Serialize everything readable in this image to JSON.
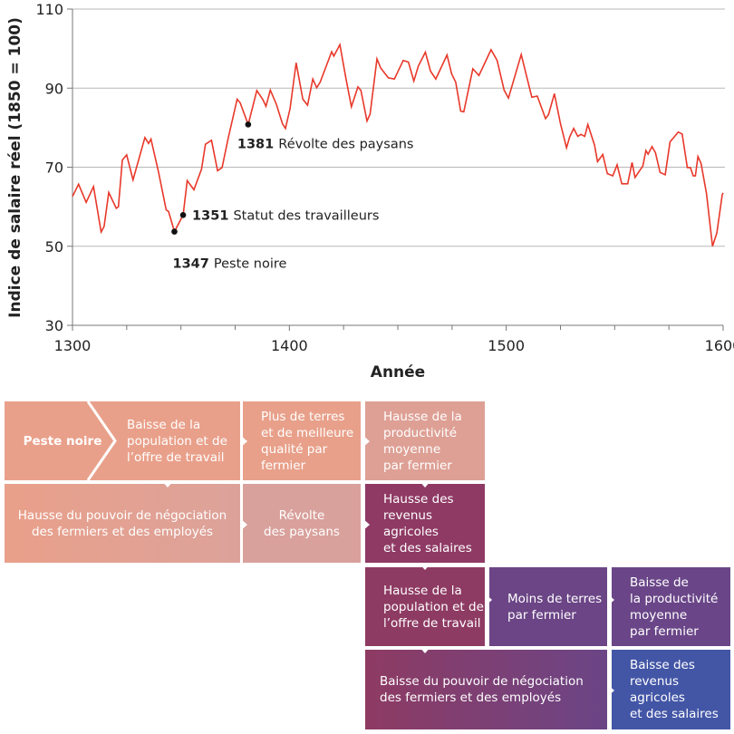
{
  "chart_data": {
    "type": "line",
    "xlabel": "Année",
    "ylabel": "Indice de salaire réel (1850 = 100)",
    "xlim": [
      1300,
      1600
    ],
    "ylim": [
      30,
      110
    ],
    "xticks": [
      1300,
      1400,
      1500,
      1600
    ],
    "yticks": [
      30,
      50,
      70,
      90,
      110
    ],
    "grid": "horizontal",
    "line_color": "#e8382a",
    "series": [
      {
        "x": [
          1300,
          1302.8,
          1306.3,
          1309.7,
          1313.2,
          1314.6,
          1316.7,
          1320.2,
          1321.2,
          1323,
          1325,
          1327.9,
          1333.4,
          1335.1,
          1336.2,
          1339.7,
          1343.2,
          1344.3,
          1347,
          1351,
          1352.9,
          1356,
          1359.5,
          1361.3,
          1364.1,
          1366.9,
          1369,
          1371.7,
          1375.9,
          1377.3,
          1381,
          1385,
          1387.8,
          1389.2,
          1391.2,
          1394,
          1396.8,
          1398.2,
          1400.3,
          1403.1,
          1406.2,
          1408.4,
          1410.8,
          1412.6,
          1414.2,
          1417.7,
          1419.5,
          1420.5,
          1423.3,
          1426.1,
          1428.6,
          1431.6,
          1433,
          1435.8,
          1437.2,
          1440.4,
          1442.1,
          1445.6,
          1448.4,
          1452.5,
          1454.9,
          1457.4,
          1459.5,
          1462.7,
          1465.1,
          1467.5,
          1472.7,
          1474.8,
          1476.7,
          1479,
          1480.4,
          1484.6,
          1487.4,
          1493,
          1495.8,
          1499,
          1501,
          1506.9,
          1511.8,
          1514.3,
          1518.1,
          1519.5,
          1522.2,
          1525,
          1527.8,
          1529.2,
          1531.1,
          1533,
          1534.4,
          1536.2,
          1537.6,
          1540.7,
          1542.1,
          1544.5,
          1546.6,
          1549.1,
          1551.1,
          1553.3,
          1556,
          1558,
          1559.4,
          1563,
          1564.4,
          1565.4,
          1567.2,
          1568.8,
          1570.9,
          1573.3,
          1575.5,
          1579.3,
          1581.1,
          1583.5,
          1584.9,
          1586.2,
          1587.2,
          1588.4,
          1589.8,
          1592.3,
          1595.1,
          1597.1,
          1599.6,
          1600
        ],
        "y": [
          62.6,
          65.7,
          61.1,
          65.1,
          53.6,
          55,
          63.6,
          59.6,
          60,
          71.8,
          73.1,
          66.8,
          77.5,
          76,
          77.1,
          68.7,
          59.2,
          58.8,
          53.7,
          57.9,
          66.6,
          64.3,
          69.5,
          75.8,
          76.8,
          69.1,
          69.9,
          77.1,
          87.2,
          86.3,
          80.8,
          89.4,
          87.1,
          85.4,
          89.5,
          85.9,
          81,
          79.8,
          84.8,
          96.4,
          87.2,
          85.7,
          92.3,
          90.1,
          91.5,
          96.6,
          99.2,
          98.1,
          101,
          92.4,
          85.3,
          90.3,
          89.4,
          81.7,
          83.4,
          97.4,
          95.1,
          92.6,
          92.3,
          97,
          96.6,
          91.8,
          95.6,
          99.1,
          94.3,
          92.3,
          98.4,
          93.6,
          91.5,
          84.2,
          84,
          94.9,
          93.2,
          99.7,
          97,
          89.5,
          87.5,
          98.5,
          87.7,
          88,
          82.3,
          83.3,
          88.6,
          81,
          74.9,
          77.6,
          79.8,
          77.8,
          78.3,
          77.8,
          80.8,
          75.6,
          71.4,
          73.2,
          68.4,
          67.8,
          70.6,
          65.8,
          65.8,
          71.2,
          67.4,
          70.3,
          74.2,
          73.3,
          75.2,
          73.7,
          68.7,
          68.1,
          76.4,
          78.9,
          78.4,
          69.9,
          69.9,
          67.8,
          67.8,
          72.7,
          71,
          63.4,
          50,
          53.4,
          63,
          63.5
        ]
      }
    ],
    "annotations": [
      {
        "x": 1347,
        "y": 53.7,
        "year": "1347",
        "text": "Peste noire"
      },
      {
        "x": 1351,
        "y": 57.9,
        "year": "1351",
        "text": "Statut des travailleurs"
      },
      {
        "x": 1381,
        "y": 80.8,
        "year": "1381",
        "text": "Révolte des paysans"
      }
    ]
  },
  "diagram": {
    "boxes": [
      {
        "id": "peste",
        "text": "Peste noire",
        "color": "#e9a08a"
      },
      {
        "id": "baisse-pop",
        "text": "Baisse de la\npopulation et de\nl’offre de travail",
        "color": "#e9a08a"
      },
      {
        "id": "plus-terres",
        "text": "Plus de terres\net de meilleure\nqualité par\nfermier",
        "color": "#e8a08a"
      },
      {
        "id": "hausse-prod",
        "text": "Hausse de la\nproductivité\nmoyenne\npar fermier",
        "color": "#dea095"
      },
      {
        "id": "hausse-pouvoir",
        "text": "Hausse du pouvoir de négociation\ndes fermiers et des employés",
        "color": "#e5a18e"
      },
      {
        "id": "revolte",
        "text": "Révolte\ndes paysans",
        "color": "#d9a19c"
      },
      {
        "id": "hausse-revenus",
        "text": "Hausse des\nrevenus\nagricoles\net des salaires",
        "color": "#8f3a64"
      },
      {
        "id": "hausse-pop",
        "text": "Hausse de la\npopulation et de\nl’offre de travail",
        "color": "#8e3b63"
      },
      {
        "id": "moins-terres",
        "text": "Moins de terres\npar fermier",
        "color": "#6b4586"
      },
      {
        "id": "baisse-prod",
        "text": "Baisse de\nla productivité\nmoyenne\npar fermier",
        "color": "#6a4688"
      },
      {
        "id": "baisse-pouvoir",
        "text": "Baisse du pouvoir de négociation\ndes fermiers et des employés",
        "color": "#8e3b63"
      },
      {
        "id": "baisse-revenus",
        "text": "Baisse des\nrevenus\nagricoles\net des salaires",
        "color": "#4356a6"
      }
    ]
  }
}
